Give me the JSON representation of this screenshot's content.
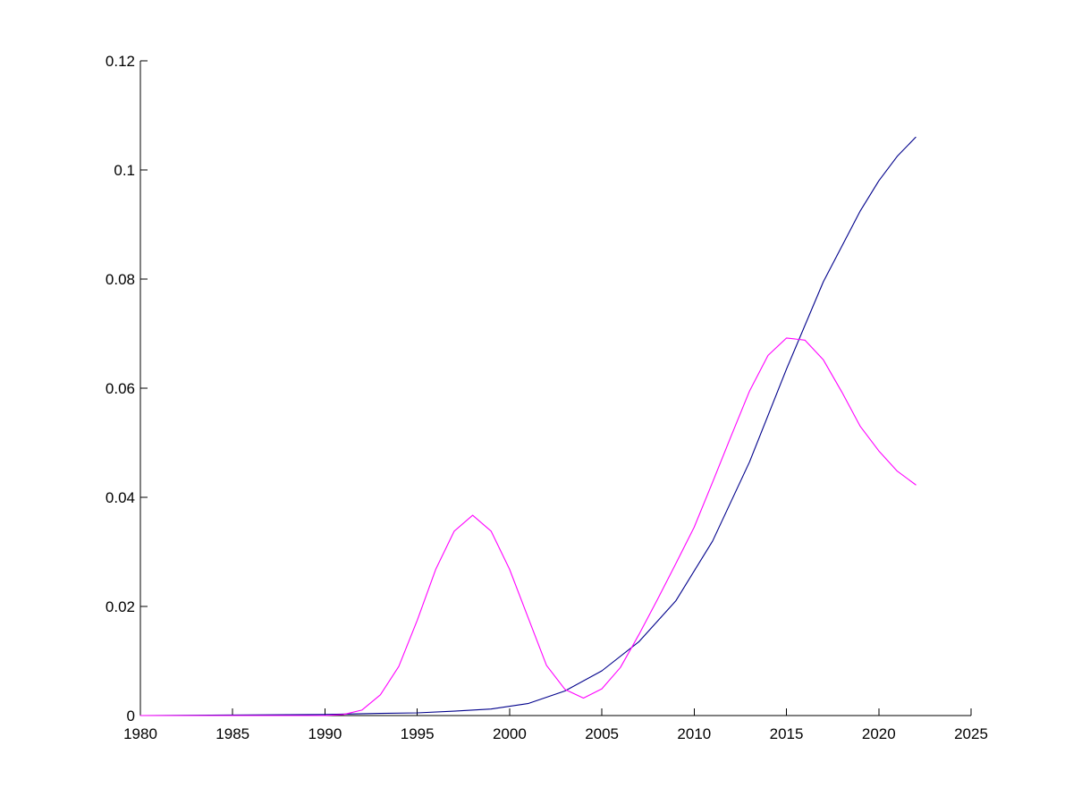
{
  "chart_data": {
    "type": "line",
    "title": "",
    "xlabel": "",
    "ylabel": "",
    "xlim": [
      1980,
      2025
    ],
    "ylim": [
      0,
      0.12
    ],
    "xticks": [
      1980,
      1985,
      1990,
      1995,
      2000,
      2005,
      2010,
      2015,
      2020,
      2025
    ],
    "yticks": [
      0,
      0.02,
      0.04,
      0.06,
      0.08,
      0.1,
      0.12
    ],
    "xtick_labels": [
      "1980",
      "1985",
      "1990",
      "1995",
      "2000",
      "2005",
      "2010",
      "2015",
      "2020",
      "2025"
    ],
    "ytick_labels": [
      "0",
      "0.02",
      "0.04",
      "0.06",
      "0.08",
      "0.1",
      "0.12"
    ],
    "grid": false,
    "legend": "none",
    "series": [
      {
        "color": "#00008b",
        "x": [
          1980,
          1985,
          1990,
          1993,
          1995,
          1997,
          1999,
          2001,
          2003,
          2005,
          2007,
          2009,
          2011,
          2013,
          2015,
          2017,
          2019,
          2020,
          2021,
          2022
        ],
        "y": [
          0,
          0.0001,
          0.0002,
          0.0004,
          0.0005,
          0.0008,
          0.0012,
          0.0022,
          0.0045,
          0.0082,
          0.0135,
          0.021,
          0.032,
          0.0465,
          0.0635,
          0.0795,
          0.0925,
          0.098,
          0.1025,
          0.106
        ]
      },
      {
        "color": "#ff00ff",
        "x": [
          1980,
          1985,
          1990,
          1991,
          1992,
          1993,
          1994,
          1995,
          1996,
          1997,
          1998,
          1999,
          2000,
          2001,
          2002,
          2003,
          2004,
          2005,
          2006,
          2007,
          2008,
          2009,
          2010,
          2011,
          2012,
          2013,
          2014,
          2015,
          2016,
          2017,
          2018,
          2019,
          2020,
          2021,
          2022
        ],
        "y": [
          0,
          0,
          0,
          0.0002,
          0.001,
          0.0038,
          0.009,
          0.0175,
          0.0268,
          0.0338,
          0.0367,
          0.0338,
          0.0268,
          0.018,
          0.0092,
          0.0048,
          0.0032,
          0.0049,
          0.0088,
          0.0148,
          0.0212,
          0.0278,
          0.0345,
          0.0428,
          0.0512,
          0.0595,
          0.066,
          0.0692,
          0.0688,
          0.0652,
          0.0593,
          0.053,
          0.0485,
          0.0448,
          0.0423
        ]
      }
    ]
  }
}
